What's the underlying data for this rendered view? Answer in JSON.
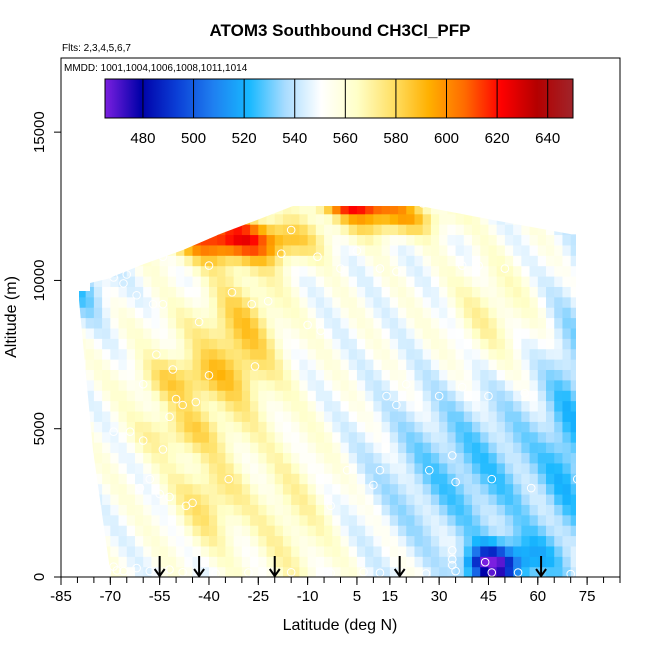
{
  "chart_data": {
    "type": "heatmap",
    "title": "ATOM3 Southbound CH3Cl_PFP",
    "flights_label": "Flts: 2,3,4,5,6,7",
    "dates_label": "MMDD: 1001,1004,1006,1008,1011,1014",
    "xlabel": "Latitude (deg N)",
    "ylabel": "Altitude (m)",
    "xlim": [
      -85,
      85
    ],
    "ylim": [
      0,
      17500
    ],
    "x_tick_labels": [
      "-85",
      "-70",
      "-55",
      "-40",
      "-25",
      "-10",
      "5",
      "15",
      "30",
      "45",
      "60",
      "75"
    ],
    "x_tick_values": [
      -85,
      -70,
      -55,
      -40,
      -25,
      -10,
      5,
      15,
      30,
      45,
      60,
      75
    ],
    "y_tick_labels": [
      "0",
      "5000",
      "10000",
      "15000"
    ],
    "y_tick_values": [
      0,
      5000,
      10000,
      15000
    ],
    "colorbar": {
      "min": 465,
      "max": 650,
      "tick_labels": [
        "480",
        "500",
        "520",
        "540",
        "560",
        "580",
        "600",
        "620",
        "640"
      ],
      "tick_values": [
        480,
        500,
        520,
        540,
        560,
        580,
        600,
        620,
        640
      ],
      "colors": [
        "#7b1fe0",
        "#0000a8",
        "#0b3fd6",
        "#1f7ff0",
        "#17b8ff",
        "#a8dcff",
        "#ffffff",
        "#ffffc8",
        "#ffe066",
        "#ffb000",
        "#ff6a00",
        "#ff0000",
        "#b40000",
        "#a0242a"
      ]
    },
    "arrows_lat": [
      -55,
      -43,
      -20,
      18,
      61
    ],
    "sample_points": [
      {
        "lat": -58,
        "alt": 200
      },
      {
        "lat": -62,
        "alt": 300
      },
      {
        "lat": -66,
        "alt": 200
      },
      {
        "lat": -68,
        "alt": 220
      },
      {
        "lat": -71,
        "alt": 180
      },
      {
        "lat": -69,
        "alt": 350
      },
      {
        "lat": -52,
        "alt": 250
      },
      {
        "lat": -48,
        "alt": 160
      },
      {
        "lat": -38,
        "alt": 120
      },
      {
        "lat": -28,
        "alt": 150
      },
      {
        "lat": -15,
        "alt": 160
      },
      {
        "lat": -3,
        "alt": 130
      },
      {
        "lat": 7,
        "alt": 170
      },
      {
        "lat": 12,
        "alt": 140
      },
      {
        "lat": 26,
        "alt": 120
      },
      {
        "lat": 35,
        "alt": 200
      },
      {
        "lat": 46,
        "alt": 150
      },
      {
        "lat": 54,
        "alt": 150
      },
      {
        "lat": 70,
        "alt": 100
      },
      {
        "lat": 34,
        "alt": 900
      },
      {
        "lat": 34,
        "alt": 600
      },
      {
        "lat": 34,
        "alt": 400
      },
      {
        "lat": 44,
        "alt": 500
      },
      {
        "lat": -52,
        "alt": 2700
      },
      {
        "lat": -45,
        "alt": 2500
      },
      {
        "lat": -47,
        "alt": 2400
      },
      {
        "lat": -55,
        "alt": 2800
      },
      {
        "lat": -58,
        "alt": 3300
      },
      {
        "lat": -61,
        "alt": 3000
      },
      {
        "lat": -3,
        "alt": 2400
      },
      {
        "lat": -34,
        "alt": 3300
      },
      {
        "lat": 2,
        "alt": 3600
      },
      {
        "lat": 10,
        "alt": 3100
      },
      {
        "lat": 12,
        "alt": 3600
      },
      {
        "lat": 27,
        "alt": 3600
      },
      {
        "lat": 34,
        "alt": 4100
      },
      {
        "lat": 35,
        "alt": 3200
      },
      {
        "lat": 46,
        "alt": 3300
      },
      {
        "lat": 58,
        "alt": 3000
      },
      {
        "lat": 72,
        "alt": 3300
      },
      {
        "lat": -69,
        "alt": 4900
      },
      {
        "lat": -64,
        "alt": 4900
      },
      {
        "lat": -60,
        "alt": 4600
      },
      {
        "lat": -54,
        "alt": 4300
      },
      {
        "lat": -52,
        "alt": 5400
      },
      {
        "lat": -50,
        "alt": 6000
      },
      {
        "lat": -60,
        "alt": 6500
      },
      {
        "lat": -56,
        "alt": 7500
      },
      {
        "lat": -51,
        "alt": 7000
      },
      {
        "lat": -48,
        "alt": 5800
      },
      {
        "lat": -44,
        "alt": 5900
      },
      {
        "lat": -40,
        "alt": 6800
      },
      {
        "lat": -26,
        "alt": 7100
      },
      {
        "lat": -57,
        "alt": 9200
      },
      {
        "lat": -54,
        "alt": 9200
      },
      {
        "lat": -62,
        "alt": 9500
      },
      {
        "lat": -66,
        "alt": 9900
      },
      {
        "lat": -43,
        "alt": 8600
      },
      {
        "lat": -33,
        "alt": 9600
      },
      {
        "lat": -27,
        "alt": 9200
      },
      {
        "lat": -22,
        "alt": 9300
      },
      {
        "lat": -40,
        "alt": 10500
      },
      {
        "lat": -54,
        "alt": 10800
      },
      {
        "lat": -65,
        "alt": 10200
      },
      {
        "lat": -69,
        "alt": 10100
      },
      {
        "lat": -18,
        "alt": 10900
      },
      {
        "lat": -7,
        "alt": 10800
      },
      {
        "lat": 0,
        "alt": 10400
      },
      {
        "lat": 5,
        "alt": 11000
      },
      {
        "lat": 12,
        "alt": 10400
      },
      {
        "lat": 17,
        "alt": 10300
      },
      {
        "lat": 37,
        "alt": 10500
      },
      {
        "lat": 42,
        "alt": 10500
      },
      {
        "lat": 50,
        "alt": 10400
      },
      {
        "lat": 68,
        "alt": 11800
      },
      {
        "lat": -15,
        "alt": 11700
      },
      {
        "lat": -10,
        "alt": 8500
      },
      {
        "lat": -6,
        "alt": 8300
      },
      {
        "lat": 25,
        "alt": 12600
      },
      {
        "lat": 14,
        "alt": 6100
      },
      {
        "lat": 17,
        "alt": 5800
      },
      {
        "lat": 20,
        "alt": 6500
      },
      {
        "lat": 30,
        "alt": 6100
      },
      {
        "lat": 37,
        "alt": 6400
      },
      {
        "lat": 45,
        "alt": 6100
      },
      {
        "lat": 56,
        "alt": 6200
      }
    ]
  }
}
